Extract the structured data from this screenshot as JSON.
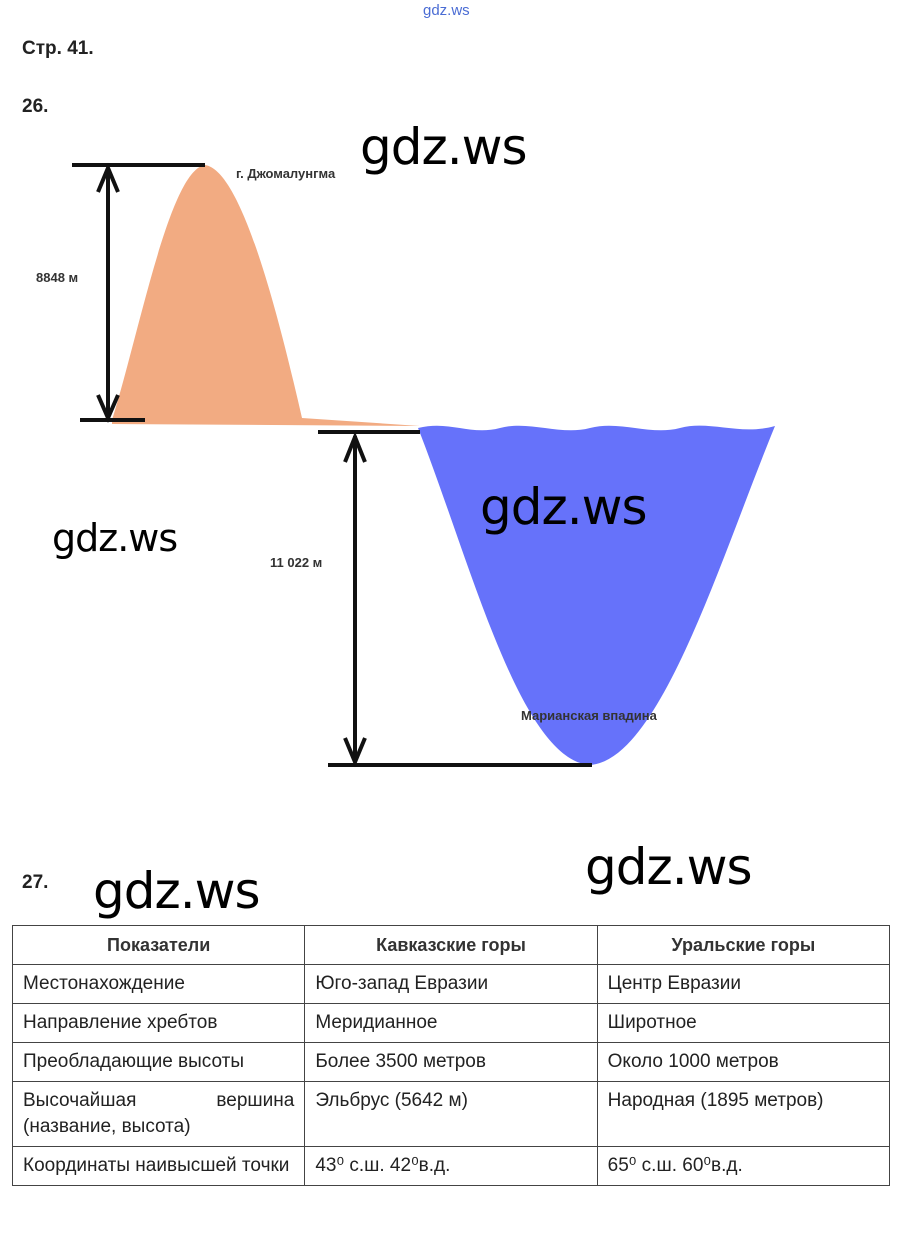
{
  "watermark_top": "gdz.ws",
  "page_label": "Стр. 41.",
  "task26": {
    "number": "26.",
    "diagram": {
      "mountain_label": "г. Джомалунгма",
      "height_label": "8848 м",
      "depth_label": "11 022 м",
      "trench_label": "Марианская впадина"
    }
  },
  "watermarks": [
    "gdz.ws",
    "gdz.ws",
    "gdz.ws",
    "gdz.ws",
    "gdz.ws"
  ],
  "task27": {
    "number": "27.",
    "table": {
      "header": [
        "Показатели",
        "Кавказские горы",
        "Уральские горы"
      ],
      "rows": [
        [
          "Местонахождение",
          "Юго-запад Евразии",
          "Центр Евразии"
        ],
        [
          "Направление хребтов",
          "Меридианное",
          "Широтное"
        ],
        [
          "Преобладающие высоты",
          "Более 3500 метров",
          "Около 1000 метров"
        ],
        [
          "Высочайшая вершина (название, высота)",
          "Эльбрус (5642 м)",
          "Народная (1895 метров)"
        ],
        [
          "Координаты наивысшей точки",
          "43⁰ с.ш. 42⁰в.д.",
          "65⁰ с.ш. 60⁰в.д."
        ]
      ]
    }
  }
}
